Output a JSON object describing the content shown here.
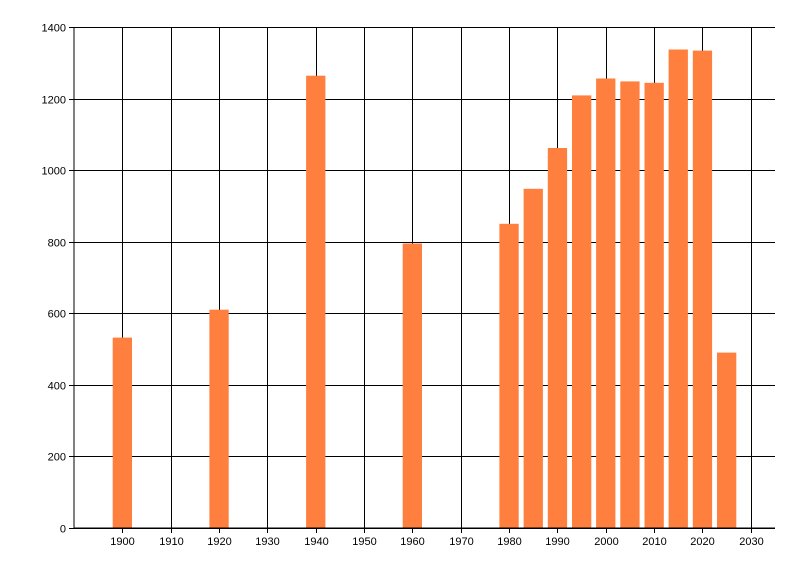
{
  "chart_data": {
    "type": "bar",
    "x": [
      1900,
      1920,
      1940,
      1960,
      1980,
      1985,
      1990,
      1995,
      2000,
      2005,
      2010,
      2015,
      2020,
      2025
    ],
    "values": [
      532,
      610,
      1264,
      795,
      850,
      948,
      1062,
      1209,
      1256,
      1248,
      1244,
      1337,
      1334,
      490
    ],
    "xlim": [
      1890,
      2035
    ],
    "ylim": [
      0,
      1400
    ],
    "xticks": [
      1900,
      1910,
      1920,
      1930,
      1940,
      1950,
      1960,
      1970,
      1980,
      1990,
      2000,
      2010,
      2020,
      2030
    ],
    "yticks": [
      0,
      200,
      400,
      600,
      800,
      1000,
      1200,
      1400
    ],
    "bar_width_years": 4,
    "grid": true,
    "bar_color": "#ff7f3f",
    "grid_color": "#000000"
  }
}
